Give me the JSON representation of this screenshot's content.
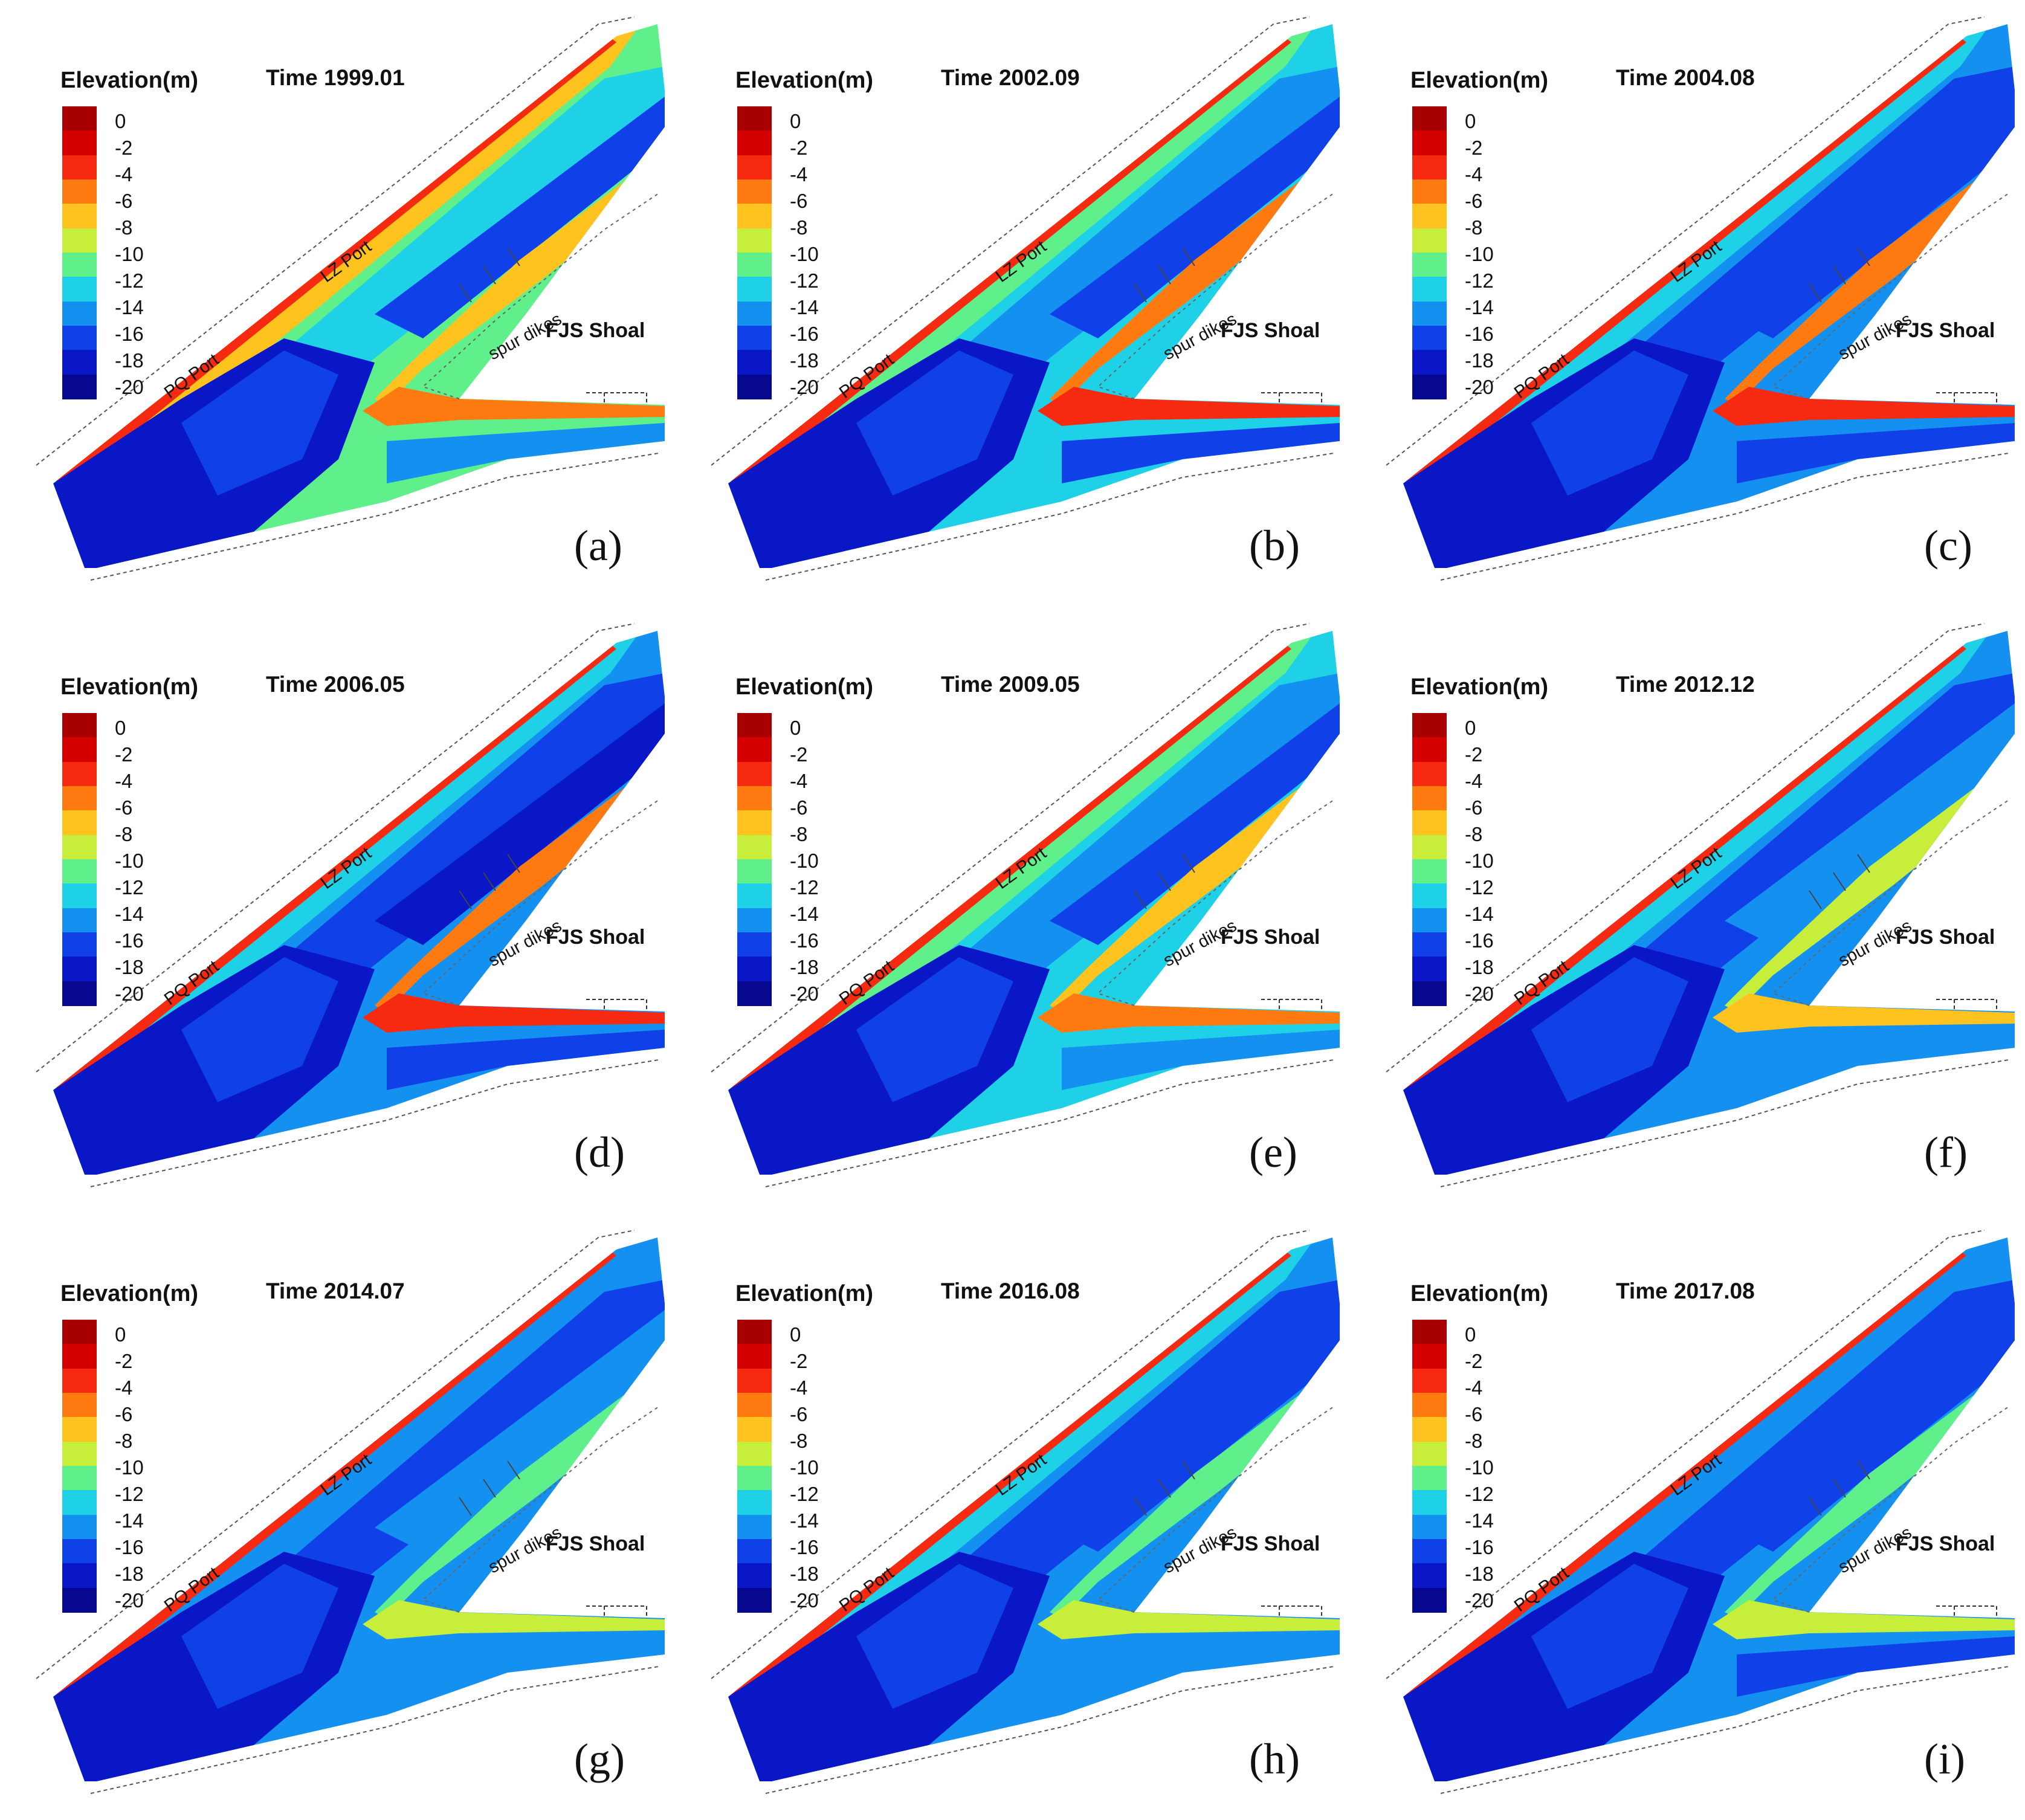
{
  "legend_title": "Elevation(m)",
  "colorbar": {
    "ticks": [
      "0",
      "-2",
      "-4",
      "-6",
      "-8",
      "-10",
      "-12",
      "-14",
      "-16",
      "-18",
      "-20"
    ],
    "colors": [
      "#a80000",
      "#d40000",
      "#f52a10",
      "#ff7a10",
      "#ffc31f",
      "#c8ee3c",
      "#5ff08c",
      "#1fd1e6",
      "#1490f0",
      "#1040e8",
      "#0a17c6",
      "#06098f"
    ]
  },
  "map_labels": {
    "pq_port": "PQ Port",
    "lz_port": "LZ Port",
    "spur_dikes": "spur dikes",
    "fjs_shoal": "FJS Shoal"
  },
  "panels": [
    {
      "tag": "(a)",
      "time": "Time 1999.01"
    },
    {
      "tag": "(b)",
      "time": "Time 2002.09"
    },
    {
      "tag": "(c)",
      "time": "Time 2004.08"
    },
    {
      "tag": "(d)",
      "time": "Time 2006.05"
    },
    {
      "tag": "(e)",
      "time": "Time 2009.05"
    },
    {
      "tag": "(f)",
      "time": "Time 2012.12"
    },
    {
      "tag": "(g)",
      "time": "Time 2014.07"
    },
    {
      "tag": "(h)",
      "time": "Time 2016.08"
    },
    {
      "tag": "(i)",
      "time": "Time 2017.08"
    }
  ]
}
